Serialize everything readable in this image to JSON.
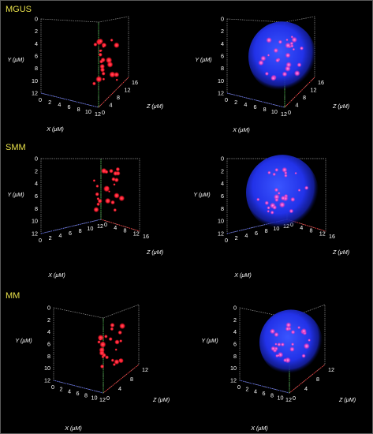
{
  "axis_titles": {
    "x": "X (μM)",
    "y": "Y (μM)",
    "z": "Z (μM)"
  },
  "colors": {
    "label": "#e8e04a",
    "foci": "#ff2030",
    "nucleus": "#2a3cff",
    "axis_x": "#6070ff",
    "axis_y": "#40c040",
    "axis_z": "#ff3030"
  },
  "rows": [
    {
      "label": "MGUS",
      "y_ticks": [
        "0",
        "2",
        "4",
        "6",
        "8",
        "10",
        "12"
      ],
      "x_ticks": [
        "0",
        "2",
        "4",
        "6",
        "8",
        "10",
        "12"
      ],
      "z_ticks": [
        "0",
        "4",
        "8",
        "12",
        "16"
      ]
    },
    {
      "label": "SMM",
      "y_ticks": [
        "0",
        "2",
        "4",
        "6",
        "8",
        "10",
        "12"
      ],
      "x_ticks": [
        "0",
        "2",
        "4",
        "6",
        "8",
        "10",
        "12"
      ],
      "z_ticks": [
        "0",
        "4",
        "8",
        "12",
        "16"
      ]
    },
    {
      "label": "MM",
      "y_ticks": [
        "0",
        "2",
        "4",
        "6",
        "8",
        "10",
        "12"
      ],
      "x_ticks": [
        "0",
        "2",
        "4",
        "6",
        "8",
        "10",
        "12"
      ],
      "z_ticks": [
        "0",
        "4",
        "8",
        "12"
      ]
    }
  ]
}
